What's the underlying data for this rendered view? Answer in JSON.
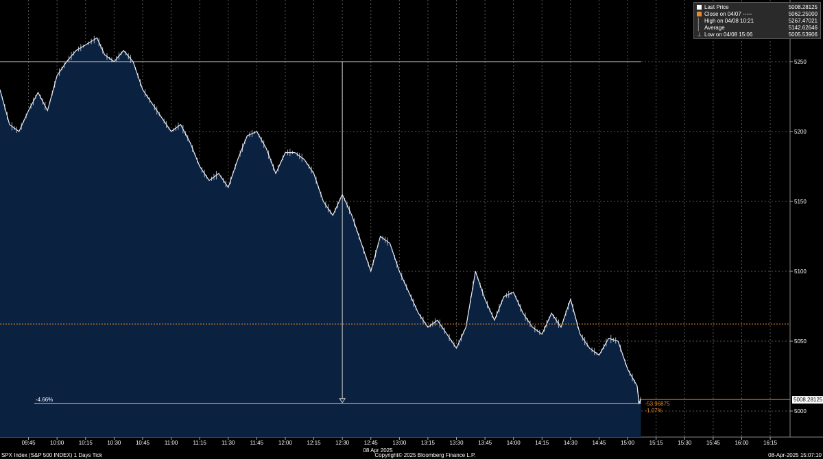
{
  "chart_data": {
    "type": "line",
    "title": "SPX Index (S&P 500 INDEX) 1 Days  Tick",
    "date_label": "08 Apr 2025",
    "copyright": "Copyright© 2025 Bloomberg Finance L.P.",
    "timestamp": "08-Apr-2025 15:07:10",
    "xlabel": "",
    "ylabel": "",
    "ylim": [
      4976,
      5290
    ],
    "y_ticks": [
      5000,
      5050,
      5100,
      5150,
      5200,
      5250
    ],
    "y_tick_labels": [
      "5000",
      "5050",
      "5100",
      "5150",
      "5200",
      "5250"
    ],
    "x_ticks": [
      "09:45",
      "10:00",
      "10:15",
      "10:30",
      "10:45",
      "11:00",
      "11:15",
      "11:30",
      "11:45",
      "12:00",
      "12:15",
      "12:30",
      "12:45",
      "13:00",
      "13:15",
      "13:30",
      "13:45",
      "14:00",
      "14:15",
      "14:30",
      "14:45",
      "15:00",
      "15:15",
      "15:30",
      "15:45",
      "16:00",
      "16:15"
    ],
    "x_range": [
      "09:30",
      "16:25"
    ],
    "grid": true,
    "legend_position": "top-right",
    "colors": {
      "background": "#000000",
      "area_fill": "#0b2140",
      "price_line": "#e6ecf5",
      "close_line": "#e8892f",
      "grid": "#5a5a5a",
      "label_box": "#ffffff"
    },
    "legend": [
      {
        "key": "square-white",
        "label": "Last Price",
        "value": "5008.28125"
      },
      {
        "key": "square-orange",
        "label": "Close on 04/07 -----",
        "value": "5062.25000"
      },
      {
        "key": "high-marker",
        "label": "High on 04/08 10:21",
        "value": "5267.47021"
      },
      {
        "key": "average-marker",
        "label": "Average",
        "value": "5142.62646"
      },
      {
        "key": "low-marker",
        "label": "Low on 04/08 15:06",
        "value": "5005.53906"
      }
    ],
    "last_price": {
      "value": 5008.28125,
      "label": "5008.28125"
    },
    "previous_close": 5062.25,
    "high": {
      "time": "10:21",
      "value": 5267.47021
    },
    "low": {
      "time": "15:06",
      "value": 5005.53906
    },
    "average": 5142.62646,
    "annotations": {
      "change_points": "-53.96875",
      "change_percent": "-1.07%",
      "drawdown_percent": "-4.66%",
      "drawdown_line": {
        "from_time": "09:48",
        "to_time": "15:06",
        "value": 5005.5
      },
      "peak_line": {
        "from_time": "09:30",
        "to_time": "15:07",
        "value": 5250
      },
      "arrow": {
        "time": "12:30",
        "from_value": 5250,
        "to_value": 5005.5
      }
    },
    "series": [
      {
        "name": "Last Price",
        "x": [
          "09:30",
          "09:35",
          "09:40",
          "09:45",
          "09:50",
          "09:55",
          "10:00",
          "10:05",
          "10:10",
          "10:15",
          "10:21",
          "10:25",
          "10:30",
          "10:35",
          "10:40",
          "10:45",
          "10:50",
          "10:55",
          "11:00",
          "11:05",
          "11:10",
          "11:15",
          "11:20",
          "11:25",
          "11:30",
          "11:35",
          "11:40",
          "11:45",
          "11:50",
          "11:55",
          "12:00",
          "12:05",
          "12:10",
          "12:15",
          "12:20",
          "12:25",
          "12:30",
          "12:35",
          "12:40",
          "12:45",
          "12:50",
          "12:55",
          "13:00",
          "13:05",
          "13:10",
          "13:15",
          "13:20",
          "13:25",
          "13:30",
          "13:35",
          "13:40",
          "13:45",
          "13:50",
          "13:55",
          "14:00",
          "14:05",
          "14:10",
          "14:15",
          "14:20",
          "14:25",
          "14:30",
          "14:35",
          "14:40",
          "14:45",
          "14:50",
          "14:55",
          "15:00",
          "15:05",
          "15:06",
          "15:07"
        ],
        "values": [
          5230,
          5205,
          5200,
          5215,
          5228,
          5215,
          5240,
          5250,
          5258,
          5262,
          5267,
          5255,
          5250,
          5258,
          5250,
          5230,
          5220,
          5210,
          5200,
          5205,
          5192,
          5175,
          5165,
          5170,
          5160,
          5180,
          5197,
          5200,
          5188,
          5170,
          5185,
          5185,
          5180,
          5170,
          5150,
          5140,
          5155,
          5140,
          5120,
          5100,
          5125,
          5120,
          5100,
          5085,
          5070,
          5060,
          5065,
          5055,
          5045,
          5060,
          5100,
          5080,
          5065,
          5082,
          5085,
          5070,
          5060,
          5055,
          5070,
          5060,
          5080,
          5055,
          5045,
          5040,
          5052,
          5050,
          5030,
          5018,
          5005.5,
          5008.3
        ]
      }
    ]
  }
}
